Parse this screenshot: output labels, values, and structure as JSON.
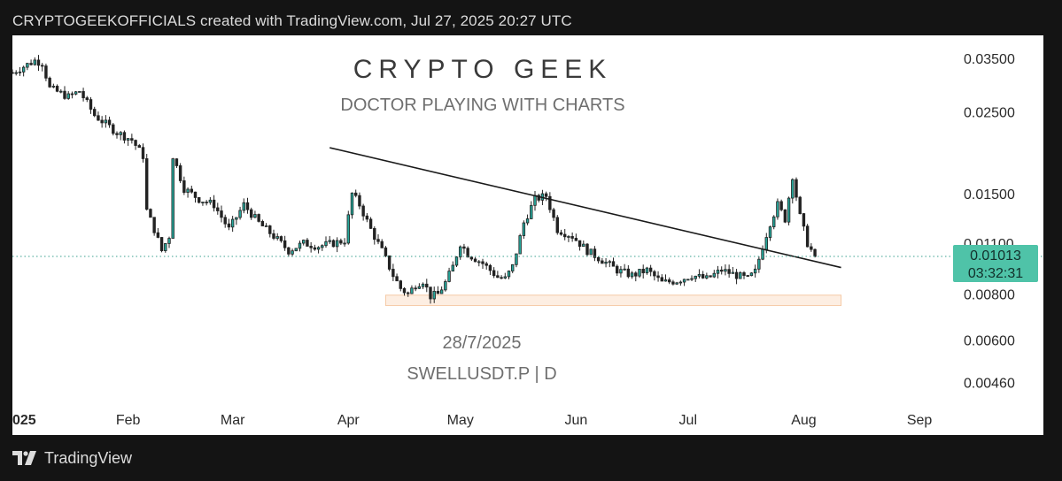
{
  "header": {
    "caption": "CRYPTOGEEKOFFICIALS created with TradingView.com, Jul 27, 2025 20:27 UTC"
  },
  "watermark": {
    "title": "CRYPTO GEEK",
    "subtitle": "DOCTOR PLAYING WITH CHARTS",
    "date": "28/7/2025",
    "symbol": "SWELLUSDT.P | D"
  },
  "footer": {
    "brand": "TradingView",
    "logo_icon": "tradingview-logo-icon"
  },
  "colors": {
    "candle_body": "#26a69a",
    "candle_outline": "#222222",
    "trendline": "#1a1a1a",
    "support_zone": "#fdeee2",
    "support_zone_border": "#f5c9a6",
    "price_tag": "#4fc3a8",
    "dotted_line": "#3aa08f"
  },
  "chart_data": {
    "type": "candlestick",
    "symbol": "SWELLUSDT.P",
    "timeframe": "D",
    "y_scale": "log",
    "ylim": [
      0.004,
      0.0395
    ],
    "y_ticks": [
      "0.03500",
      "0.02500",
      "0.01500",
      "0.01100",
      "0.00800",
      "0.00600",
      "0.00460"
    ],
    "x_ticks": [
      "025",
      "Feb",
      "Mar",
      "Apr",
      "May",
      "Jun",
      "Jul",
      "Aug",
      "Sep"
    ],
    "x_range_days": [
      0,
      252
    ],
    "x_tick_days": [
      0,
      31,
      59,
      90,
      120,
      151,
      181,
      212,
      243
    ],
    "last_price": "0.01013",
    "countdown": "03:32:31",
    "last_price_value": 0.01013,
    "anchors": [
      [
        0,
        0.032
      ],
      [
        6,
        0.0345
      ],
      [
        8,
        0.034
      ],
      [
        10,
        0.029
      ],
      [
        15,
        0.0275
      ],
      [
        18,
        0.0285
      ],
      [
        22,
        0.0245
      ],
      [
        28,
        0.022
      ],
      [
        32,
        0.021
      ],
      [
        35,
        0.019
      ],
      [
        36,
        0.0135
      ],
      [
        38,
        0.012
      ],
      [
        40,
        0.0105
      ],
      [
        42,
        0.0115
      ],
      [
        43,
        0.019
      ],
      [
        46,
        0.0155
      ],
      [
        50,
        0.0145
      ],
      [
        54,
        0.014
      ],
      [
        58,
        0.012
      ],
      [
        62,
        0.014
      ],
      [
        66,
        0.0125
      ],
      [
        70,
        0.0115
      ],
      [
        74,
        0.0105
      ],
      [
        78,
        0.011
      ],
      [
        82,
        0.0108
      ],
      [
        86,
        0.011
      ],
      [
        89,
        0.0112
      ],
      [
        91,
        0.015
      ],
      [
        93,
        0.014
      ],
      [
        96,
        0.012
      ],
      [
        99,
        0.0105
      ],
      [
        102,
        0.009
      ],
      [
        104,
        0.0083
      ],
      [
        106,
        0.008
      ],
      [
        108,
        0.0085
      ],
      [
        110,
        0.0087
      ],
      [
        112,
        0.0079
      ],
      [
        114,
        0.008
      ],
      [
        116,
        0.0086
      ],
      [
        118,
        0.0095
      ],
      [
        120,
        0.011
      ],
      [
        122,
        0.0103
      ],
      [
        126,
        0.0097
      ],
      [
        130,
        0.0089
      ],
      [
        132,
        0.0088
      ],
      [
        134,
        0.0095
      ],
      [
        137,
        0.0125
      ],
      [
        140,
        0.0145
      ],
      [
        143,
        0.0148
      ],
      [
        146,
        0.012
      ],
      [
        150,
        0.0115
      ],
      [
        154,
        0.0105
      ],
      [
        158,
        0.0099
      ],
      [
        162,
        0.0093
      ],
      [
        166,
        0.009
      ],
      [
        170,
        0.0093
      ],
      [
        174,
        0.0086
      ],
      [
        178,
        0.0087
      ],
      [
        182,
        0.009
      ],
      [
        186,
        0.0088
      ],
      [
        190,
        0.0093
      ],
      [
        194,
        0.009
      ],
      [
        197,
        0.0088
      ],
      [
        199,
        0.0092
      ],
      [
        201,
        0.0108
      ],
      [
        203,
        0.0125
      ],
      [
        205,
        0.014
      ],
      [
        207,
        0.0128
      ],
      [
        209,
        0.0168
      ],
      [
        211,
        0.013
      ],
      [
        213,
        0.011
      ],
      [
        215,
        0.0101
      ]
    ],
    "trendline": {
      "from": {
        "day": 85,
        "price": 0.02
      },
      "to": {
        "day": 222,
        "price": 0.00945
      }
    },
    "support_zone": {
      "day_from": 100,
      "day_to": 222,
      "price_low": 0.00745,
      "price_high": 0.00795
    }
  }
}
